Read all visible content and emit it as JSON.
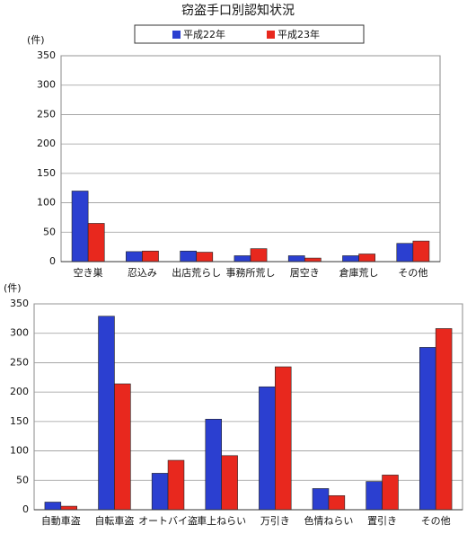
{
  "chart_data": [
    {
      "type": "bar",
      "title": "窃盗手口別認知状況",
      "y_label": "(件)",
      "categories": [
        "空き巣",
        "忍込み",
        "出店荒らし",
        "事務所荒し",
        "居空き",
        "倉庫荒し",
        "その他"
      ],
      "series": [
        {
          "name": "平成22年",
          "color": "#2b3fd0",
          "values": [
            120,
            17,
            18,
            10,
            10,
            10,
            31
          ]
        },
        {
          "name": "平成23年",
          "color": "#e8281e",
          "values": [
            65,
            18,
            16,
            22,
            6,
            13,
            35
          ]
        }
      ],
      "ylim": [
        0,
        350
      ],
      "yticks": [
        0,
        50,
        100,
        150,
        200,
        250,
        300,
        350
      ],
      "grid": true
    },
    {
      "type": "bar",
      "y_label": "(件)",
      "categories": [
        "自動車盗",
        "自転車盗",
        "オートバイ盗",
        "車上ねらい",
        "万引き",
        "色情ねらい",
        "置引き",
        "その他"
      ],
      "series": [
        {
          "color": "#2b3fd0",
          "values": [
            13,
            329,
            62,
            154,
            209,
            36,
            48,
            276
          ]
        },
        {
          "color": "#e8281e",
          "values": [
            6,
            214,
            84,
            92,
            243,
            24,
            59,
            308
          ]
        }
      ],
      "ylim": [
        0,
        350
      ],
      "yticks": [
        0,
        50,
        100,
        150,
        200,
        250,
        300,
        350
      ],
      "grid": true
    }
  ]
}
